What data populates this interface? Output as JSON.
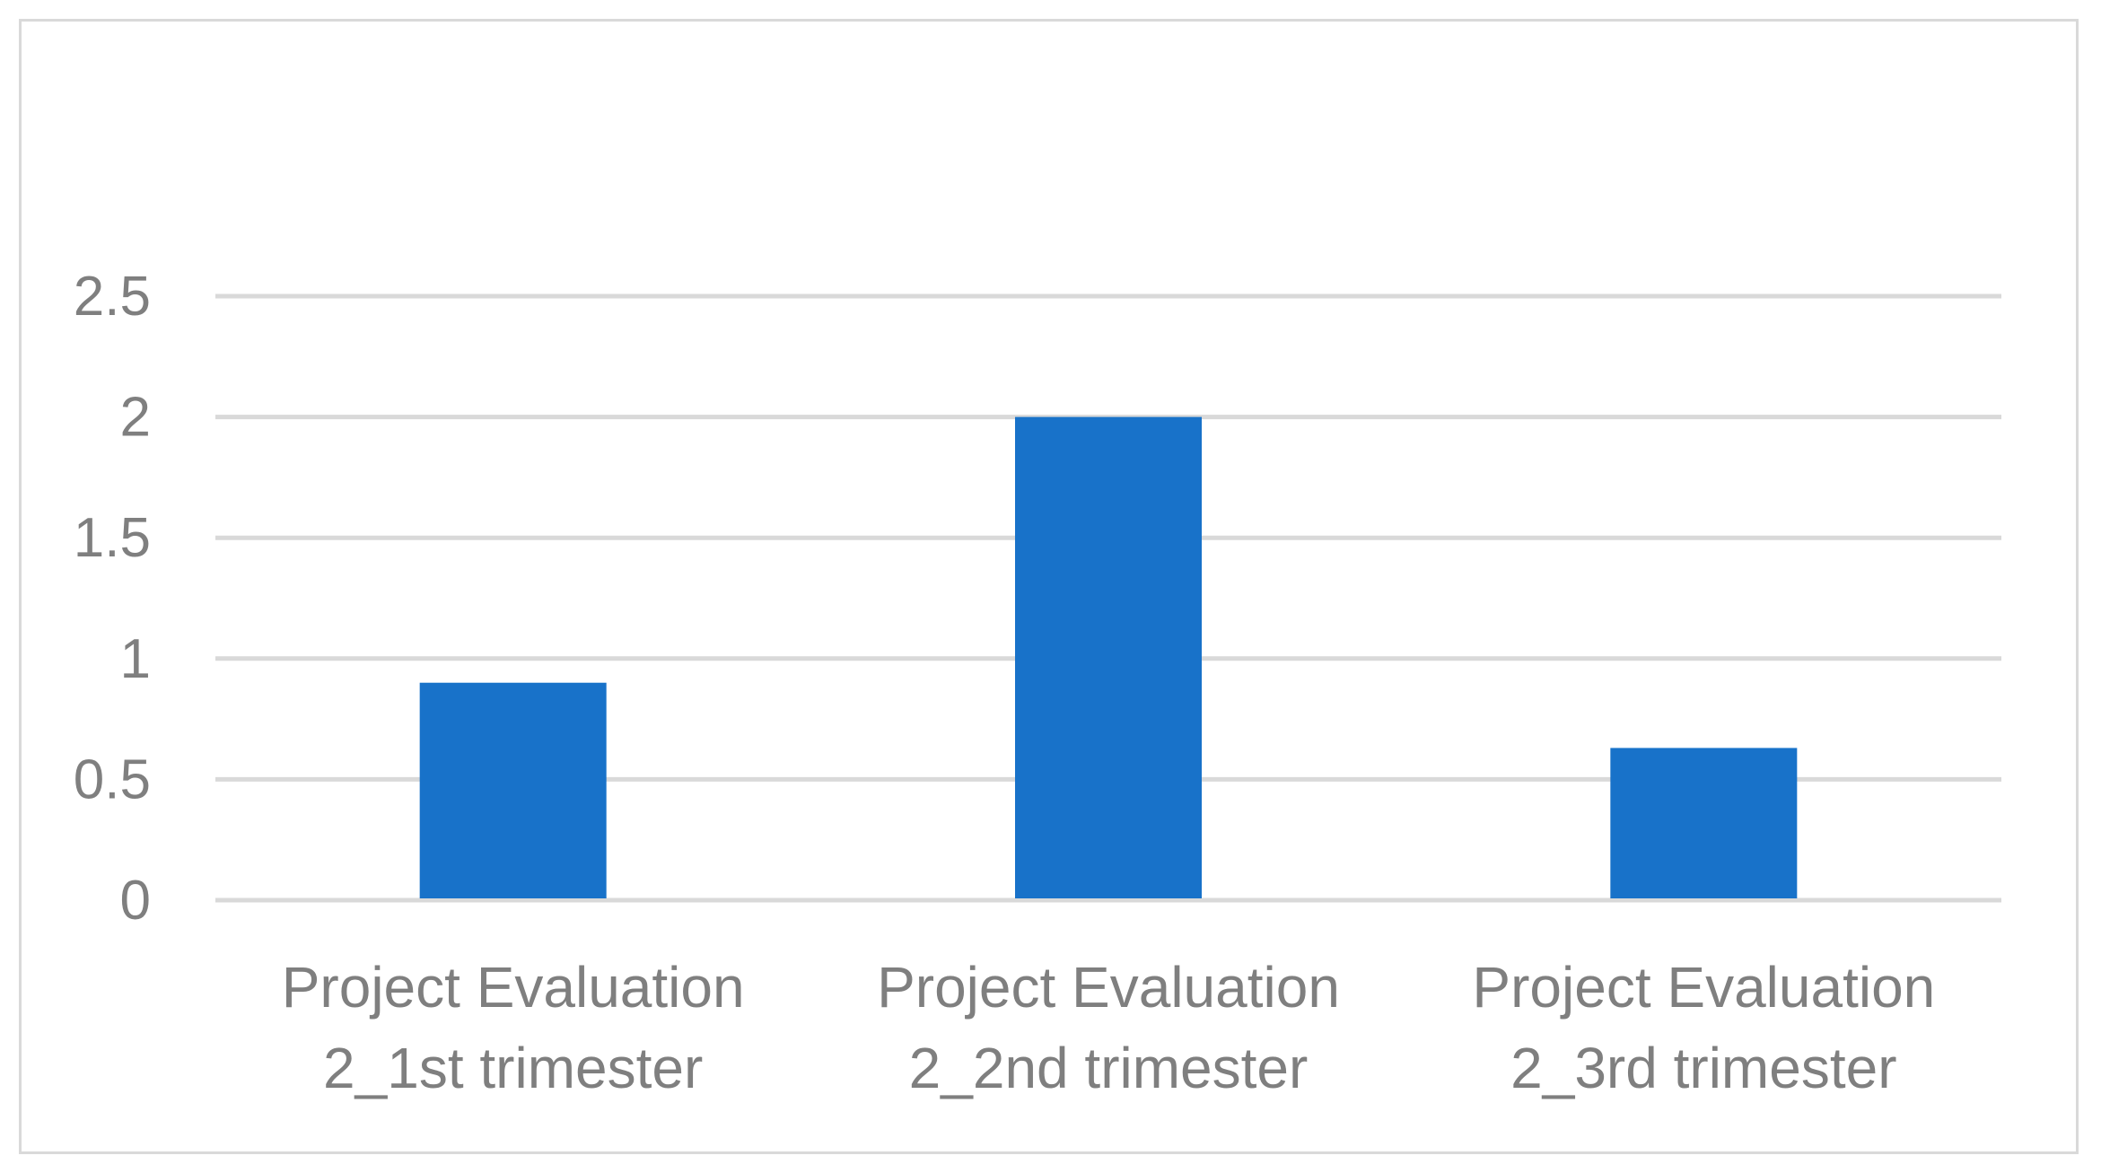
{
  "chart_data": {
    "type": "bar",
    "title": "",
    "xlabel": "",
    "ylabel": "",
    "categories": [
      [
        "Project Evaluation",
        "2_1st trimester"
      ],
      [
        "Project Evaluation",
        "2_2nd trimester"
      ],
      [
        "Project Evaluation",
        "2_3rd trimester"
      ]
    ],
    "values": [
      0.9,
      2.0,
      0.63
    ],
    "ylim": [
      0,
      2.5
    ],
    "yticks": [
      "0",
      "0.5",
      "1",
      "1.5",
      "2",
      "2.5"
    ],
    "ytick_values": [
      0,
      0.5,
      1,
      1.5,
      2,
      2.5
    ],
    "grid": true,
    "legend": "none",
    "colors": {
      "bar": "#1872c9",
      "grid": "#d9d9d9",
      "text": "#7f7f7f",
      "border": "#d9d9d9"
    }
  }
}
